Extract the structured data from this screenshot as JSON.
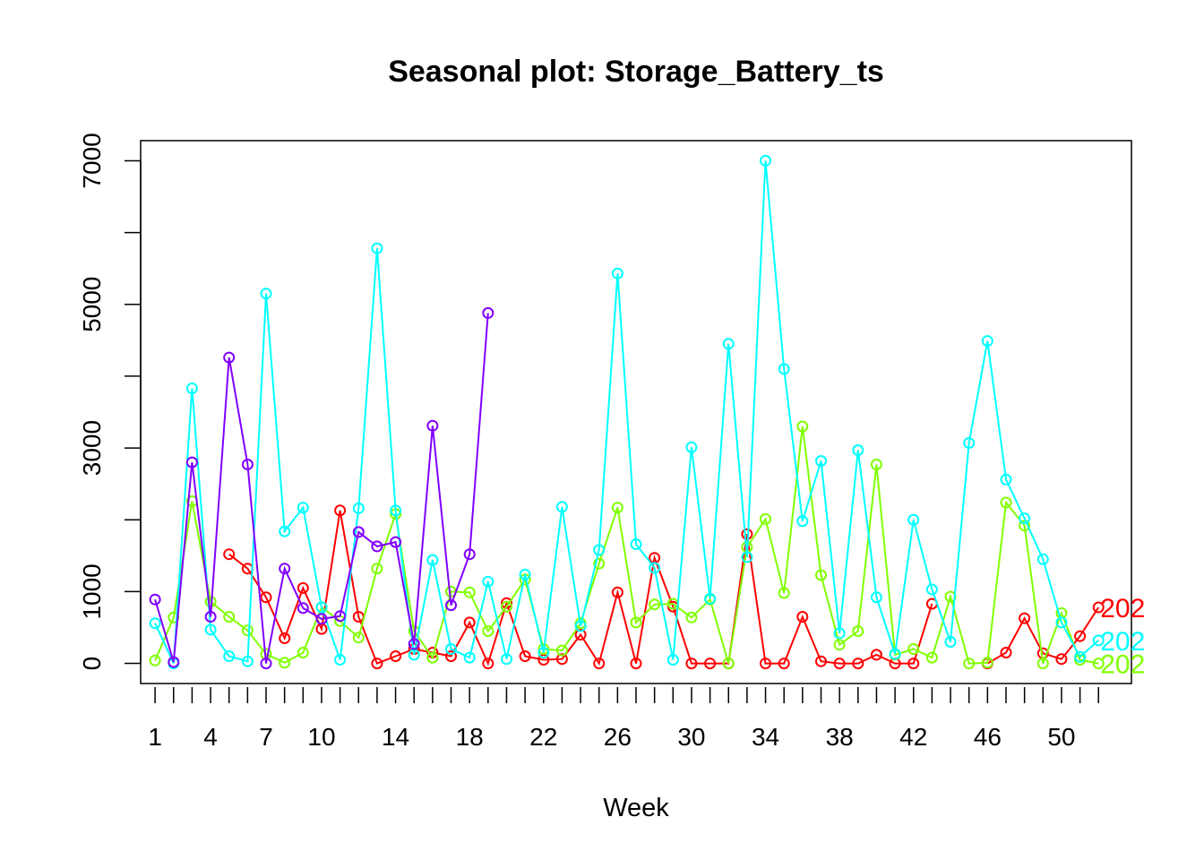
{
  "chart_data": {
    "type": "line",
    "title": "Seasonal plot: Storage_Battery_ts",
    "xlabel": "Week",
    "ylabel": "",
    "xlim": [
      0.22,
      53.78
    ],
    "ylim": [
      -280,
      7280
    ],
    "x_tick_labels": [
      "1",
      "4",
      "7",
      "10",
      "14",
      "18",
      "22",
      "26",
      "30",
      "34",
      "38",
      "42",
      "46",
      "50"
    ],
    "x_tick_positions": [
      1,
      4,
      7,
      10,
      14,
      18,
      22,
      26,
      30,
      34,
      38,
      42,
      46,
      50
    ],
    "y_ticks": [
      0,
      1000,
      3000,
      5000,
      7000
    ],
    "minor_x_ticks": [
      1,
      2,
      3,
      4,
      5,
      6,
      7,
      8,
      9,
      10,
      11,
      12,
      13,
      14,
      15,
      16,
      17,
      18,
      19,
      20,
      21,
      22,
      23,
      24,
      25,
      26,
      27,
      28,
      29,
      30,
      31,
      32,
      33,
      34,
      35,
      36,
      37,
      38,
      39,
      40,
      41,
      42,
      43,
      44,
      45,
      46,
      47,
      48,
      49,
      50,
      51,
      52
    ],
    "marker": "open-circle",
    "series": [
      {
        "end_label": "202",
        "color": "#FF0000",
        "x": [
          1,
          2,
          3,
          4,
          5,
          6,
          7,
          8,
          9,
          10,
          11,
          12,
          13,
          14,
          15,
          16,
          17,
          18,
          19,
          20,
          21,
          22,
          23,
          24,
          25,
          26,
          27,
          28,
          29,
          30,
          31,
          32,
          33,
          34,
          35,
          36,
          37,
          38,
          39,
          40,
          41,
          42,
          43,
          44,
          45,
          46,
          47,
          48,
          49,
          50,
          51,
          52
        ],
        "values": [
          null,
          null,
          null,
          null,
          1520,
          1320,
          920,
          350,
          1050,
          480,
          2130,
          650,
          0,
          100,
          200,
          150,
          100,
          570,
          0,
          840,
          100,
          50,
          60,
          400,
          0,
          990,
          0,
          1470,
          790,
          0,
          0,
          0,
          1800,
          0,
          0,
          650,
          30,
          0,
          0,
          120,
          0,
          0,
          830,
          null,
          null,
          0,
          150,
          630,
          140,
          60,
          380,
          780
        ]
      },
      {
        "end_label": "202",
        "color": "#80FF00",
        "x": [
          1,
          2,
          3,
          4,
          5,
          6,
          7,
          8,
          9,
          10,
          11,
          12,
          13,
          14,
          15,
          16,
          17,
          18,
          19,
          20,
          21,
          22,
          23,
          24,
          25,
          26,
          27,
          28,
          29,
          30,
          31,
          32,
          33,
          34,
          35,
          36,
          37,
          38,
          39,
          40,
          41,
          42,
          43,
          44,
          45,
          46,
          47,
          48,
          49,
          50,
          51,
          52
        ],
        "values": [
          40,
          640,
          2260,
          860,
          650,
          460,
          130,
          10,
          150,
          780,
          590,
          360,
          1320,
          2080,
          450,
          80,
          1000,
          990,
          450,
          790,
          1170,
          200,
          180,
          560,
          1390,
          2170,
          570,
          820,
          830,
          640,
          890,
          0,
          1620,
          2010,
          980,
          3300,
          1230,
          260,
          450,
          2770,
          120,
          200,
          80,
          930,
          0,
          10,
          2240,
          1920,
          0,
          700,
          50,
          0
        ]
      },
      {
        "end_label": "202",
        "color": "#00FFFF",
        "x": [
          1,
          2,
          3,
          4,
          5,
          6,
          7,
          8,
          9,
          10,
          11,
          12,
          13,
          14,
          15,
          16,
          17,
          18,
          19,
          20,
          21,
          22,
          23,
          24,
          25,
          26,
          27,
          28,
          29,
          30,
          31,
          32,
          33,
          34,
          35,
          36,
          37,
          38,
          39,
          40,
          41,
          42,
          43,
          44,
          45,
          46,
          47,
          48,
          49,
          50,
          51,
          52
        ],
        "values": [
          560,
          0,
          3830,
          470,
          100,
          30,
          5150,
          1840,
          2170,
          780,
          50,
          2160,
          5780,
          2130,
          120,
          1440,
          200,
          80,
          1140,
          60,
          1240,
          150,
          2180,
          520,
          1580,
          5430,
          1660,
          1330,
          50,
          3010,
          900,
          4450,
          1480,
          7000,
          4100,
          1980,
          2820,
          420,
          2970,
          920,
          130,
          2000,
          1030,
          300,
          3070,
          4490,
          2560,
          2020,
          1450,
          570,
          90,
          320
        ]
      },
      {
        "end_label": "",
        "color": "#8000FF",
        "x": [
          1,
          2,
          3,
          4,
          5,
          6,
          7,
          8,
          9,
          10,
          11,
          12,
          13,
          14,
          15,
          16,
          17,
          18,
          19,
          20,
          21,
          22,
          23,
          24,
          25,
          26,
          27,
          28,
          29,
          30,
          31,
          32,
          33,
          34,
          35,
          36,
          37,
          38,
          39,
          40,
          41,
          42,
          43,
          44,
          45,
          46,
          47,
          48,
          49,
          50,
          51,
          52
        ],
        "values": [
          890,
          20,
          2800,
          650,
          4260,
          2770,
          0,
          1320,
          770,
          620,
          660,
          1830,
          1630,
          1690,
          270,
          3310,
          810,
          1520,
          4880,
          null,
          null,
          null,
          null,
          null,
          null,
          null,
          null,
          null,
          null,
          null,
          null,
          null,
          null,
          null,
          null,
          null,
          null,
          null,
          null,
          null,
          null,
          null,
          null,
          null,
          null,
          null,
          null,
          null,
          null,
          null,
          null,
          null
        ]
      }
    ]
  }
}
